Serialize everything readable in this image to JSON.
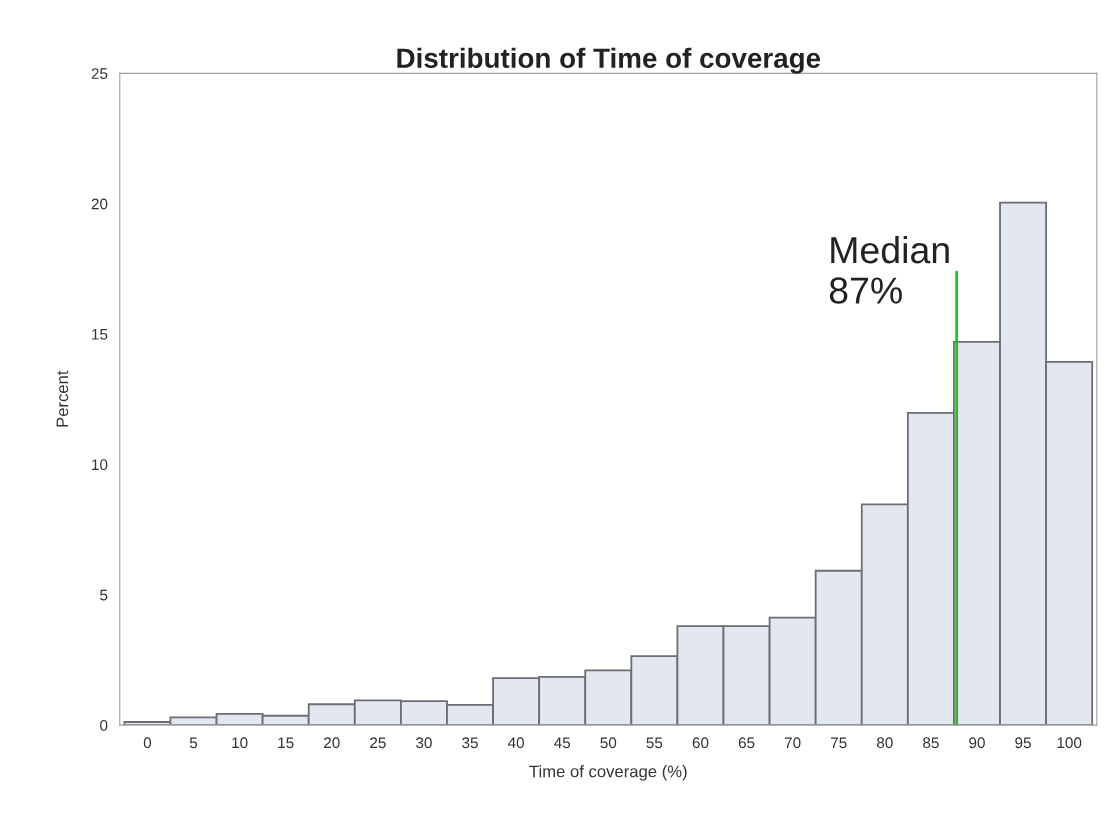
{
  "chart_data": {
    "type": "histogram",
    "title": "Distribution of Time of coverage",
    "xlabel": "Time of coverage (%)",
    "ylabel": "Percent",
    "bins": [
      -2.5,
      2.5,
      7.5,
      12.5,
      17.5,
      22.5,
      27.5,
      32.5,
      37.5,
      42.5,
      47.5,
      52.5,
      57.5,
      62.5,
      67.5,
      72.5,
      77.5,
      82.5,
      87.5,
      92.5,
      97.5,
      102.5
    ],
    "values": [
      0.12,
      0.3,
      0.43,
      0.36,
      0.8,
      0.95,
      0.92,
      0.78,
      1.8,
      1.85,
      2.1,
      2.65,
      3.8,
      3.8,
      4.12,
      5.92,
      8.47,
      11.98,
      14.7,
      20.04,
      13.93
    ],
    "color": "#e3e7f0",
    "xlim": [
      -3,
      103
    ],
    "ylim": [
      0,
      25
    ],
    "xticks": [
      0,
      5,
      10,
      15,
      20,
      25,
      30,
      35,
      40,
      45,
      50,
      55,
      60,
      65,
      70,
      75,
      80,
      85,
      90,
      95,
      100
    ],
    "yticks": [
      0,
      5,
      10,
      15,
      20,
      25
    ],
    "ref_lines": [
      {
        "axis": "x",
        "value": 87.8,
        "label": "Median\n87%",
        "color": "#3cb034"
      }
    ],
    "grid": false,
    "legend": false
  }
}
